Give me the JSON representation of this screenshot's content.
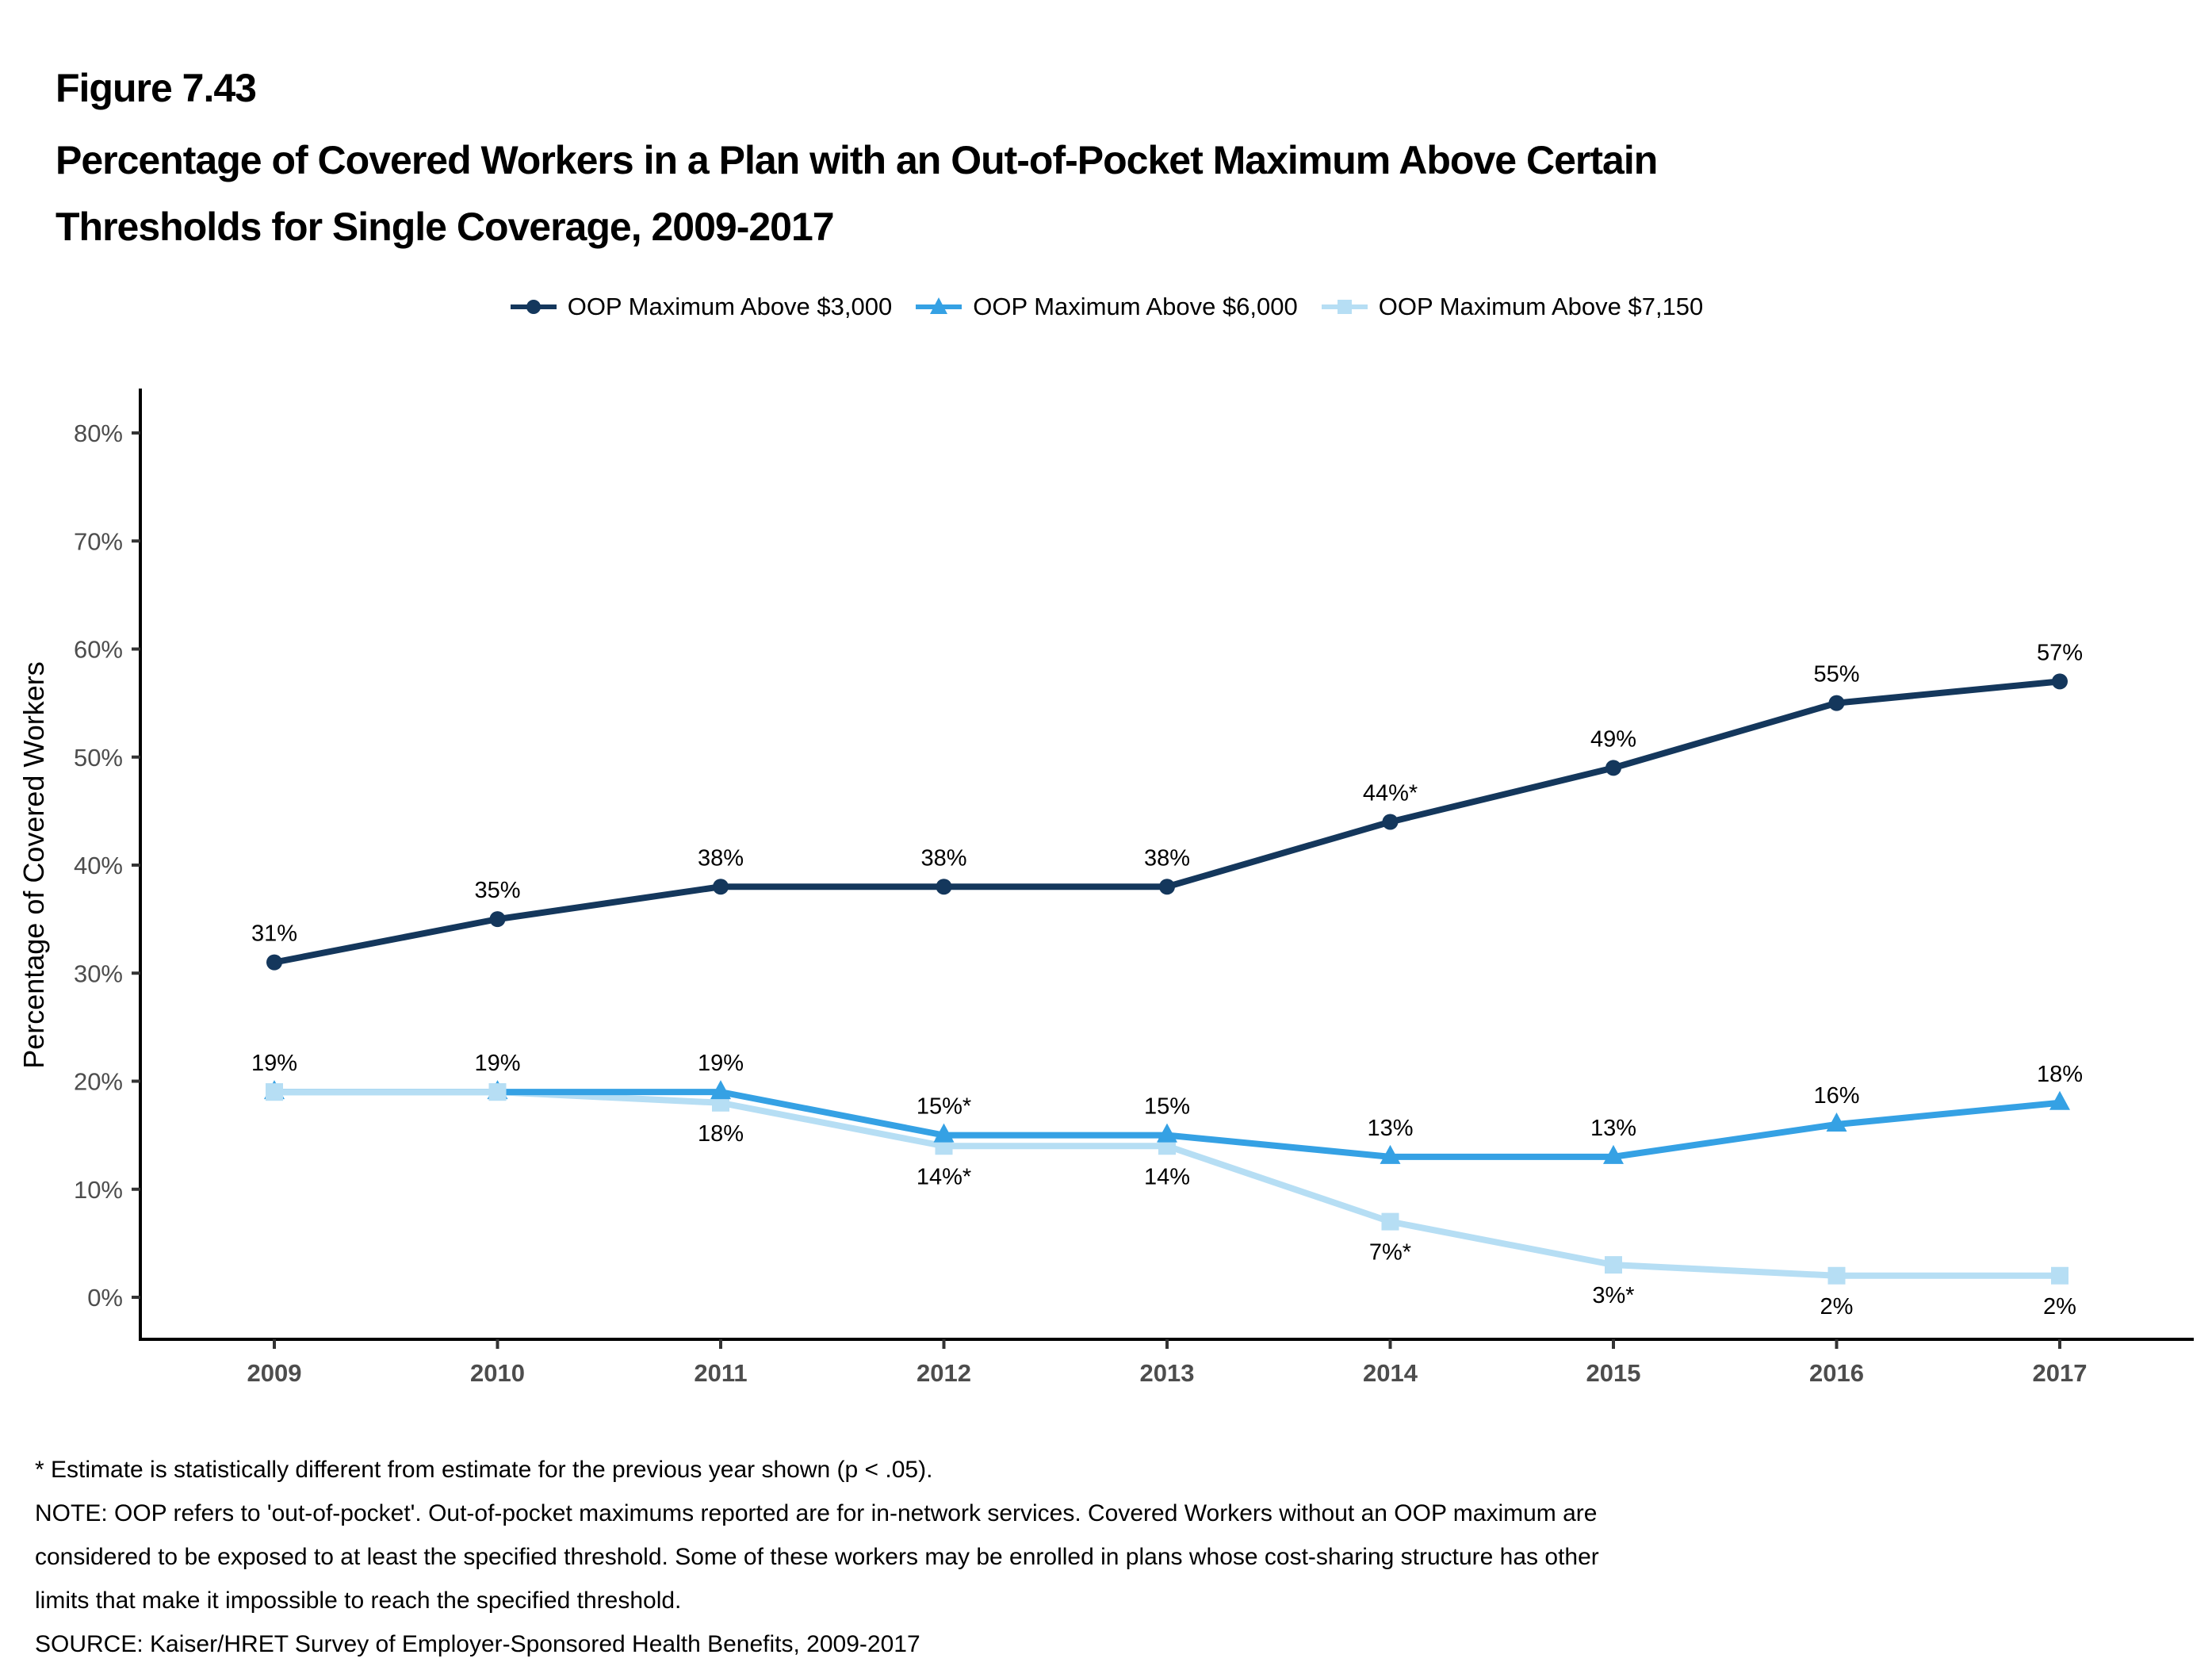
{
  "figure_number": "Figure 7.43",
  "title_lines": [
    "Percentage of Covered Workers in a Plan with an Out-of-Pocket Maximum Above Certain",
    "Thresholds for Single Coverage, 2009-2017"
  ],
  "footnotes": [
    "* Estimate is statistically different from estimate for the previous year shown (p < .05).",
    "NOTE: OOP refers to 'out-of-pocket'. Out-of-pocket maximums reported are for in-network services. Covered Workers without an OOP maximum are",
    "considered to be exposed to at least the specified threshold. Some of these workers may be enrolled in plans whose cost-sharing structure has other",
    "limits that make it impossible to reach the specified threshold.",
    "SOURCE: Kaiser/HRET Survey of Employer-Sponsored Health Benefits, 2009-2017"
  ],
  "chart_data": {
    "type": "line",
    "title": "Percentage of Covered Workers in a Plan with an Out-of-Pocket Maximum Above Certain Thresholds for Single Coverage, 2009-2017",
    "xlabel": "",
    "ylabel": "Percentage of Covered Workers",
    "x": [
      "2009",
      "2010",
      "2011",
      "2012",
      "2013",
      "2014",
      "2015",
      "2016",
      "2017"
    ],
    "ylim": [
      0,
      80
    ],
    "yticks": [
      0,
      10,
      20,
      30,
      40,
      50,
      60,
      70,
      80
    ],
    "ytick_labels": [
      "0%",
      "10%",
      "20%",
      "30%",
      "40%",
      "50%",
      "60%",
      "70%",
      "80%"
    ],
    "grid": false,
    "legend_position": "top-center",
    "series": [
      {
        "name": "OOP Maximum Above $3,000",
        "color": "#14375c",
        "marker": "circle",
        "values": [
          31,
          35,
          38,
          38,
          38,
          44,
          49,
          55,
          57
        ],
        "labels": [
          "31%",
          "35%",
          "38%",
          "38%",
          "38%",
          "44%*",
          "49%",
          "55%",
          "57%"
        ],
        "label_position": [
          "above",
          "above",
          "above",
          "above",
          "above",
          "above",
          "above",
          "above",
          "above"
        ]
      },
      {
        "name": "OOP Maximum Above $6,000",
        "color": "#35a1e4",
        "marker": "triangle",
        "values": [
          19,
          19,
          19,
          15,
          15,
          13,
          13,
          16,
          18
        ],
        "labels": [
          "19%",
          "19%",
          "19%",
          "15%*",
          "15%",
          "13%",
          "13%",
          "16%",
          "18%"
        ],
        "label_position": [
          "above",
          "above",
          "above",
          "above",
          "above",
          "above",
          "above",
          "above",
          "above"
        ]
      },
      {
        "name": "OOP Maximum Above $7,150",
        "color": "#b6def4",
        "marker": "square",
        "values": [
          19,
          19,
          18,
          14,
          14,
          7,
          3,
          2,
          2
        ],
        "labels": [
          "",
          "",
          "18%",
          "14%*",
          "14%",
          "7%*",
          "3%*",
          "2%",
          "2%"
        ],
        "label_position": [
          "below",
          "below",
          "below",
          "below",
          "below",
          "below",
          "below",
          "below",
          "below"
        ]
      }
    ]
  }
}
